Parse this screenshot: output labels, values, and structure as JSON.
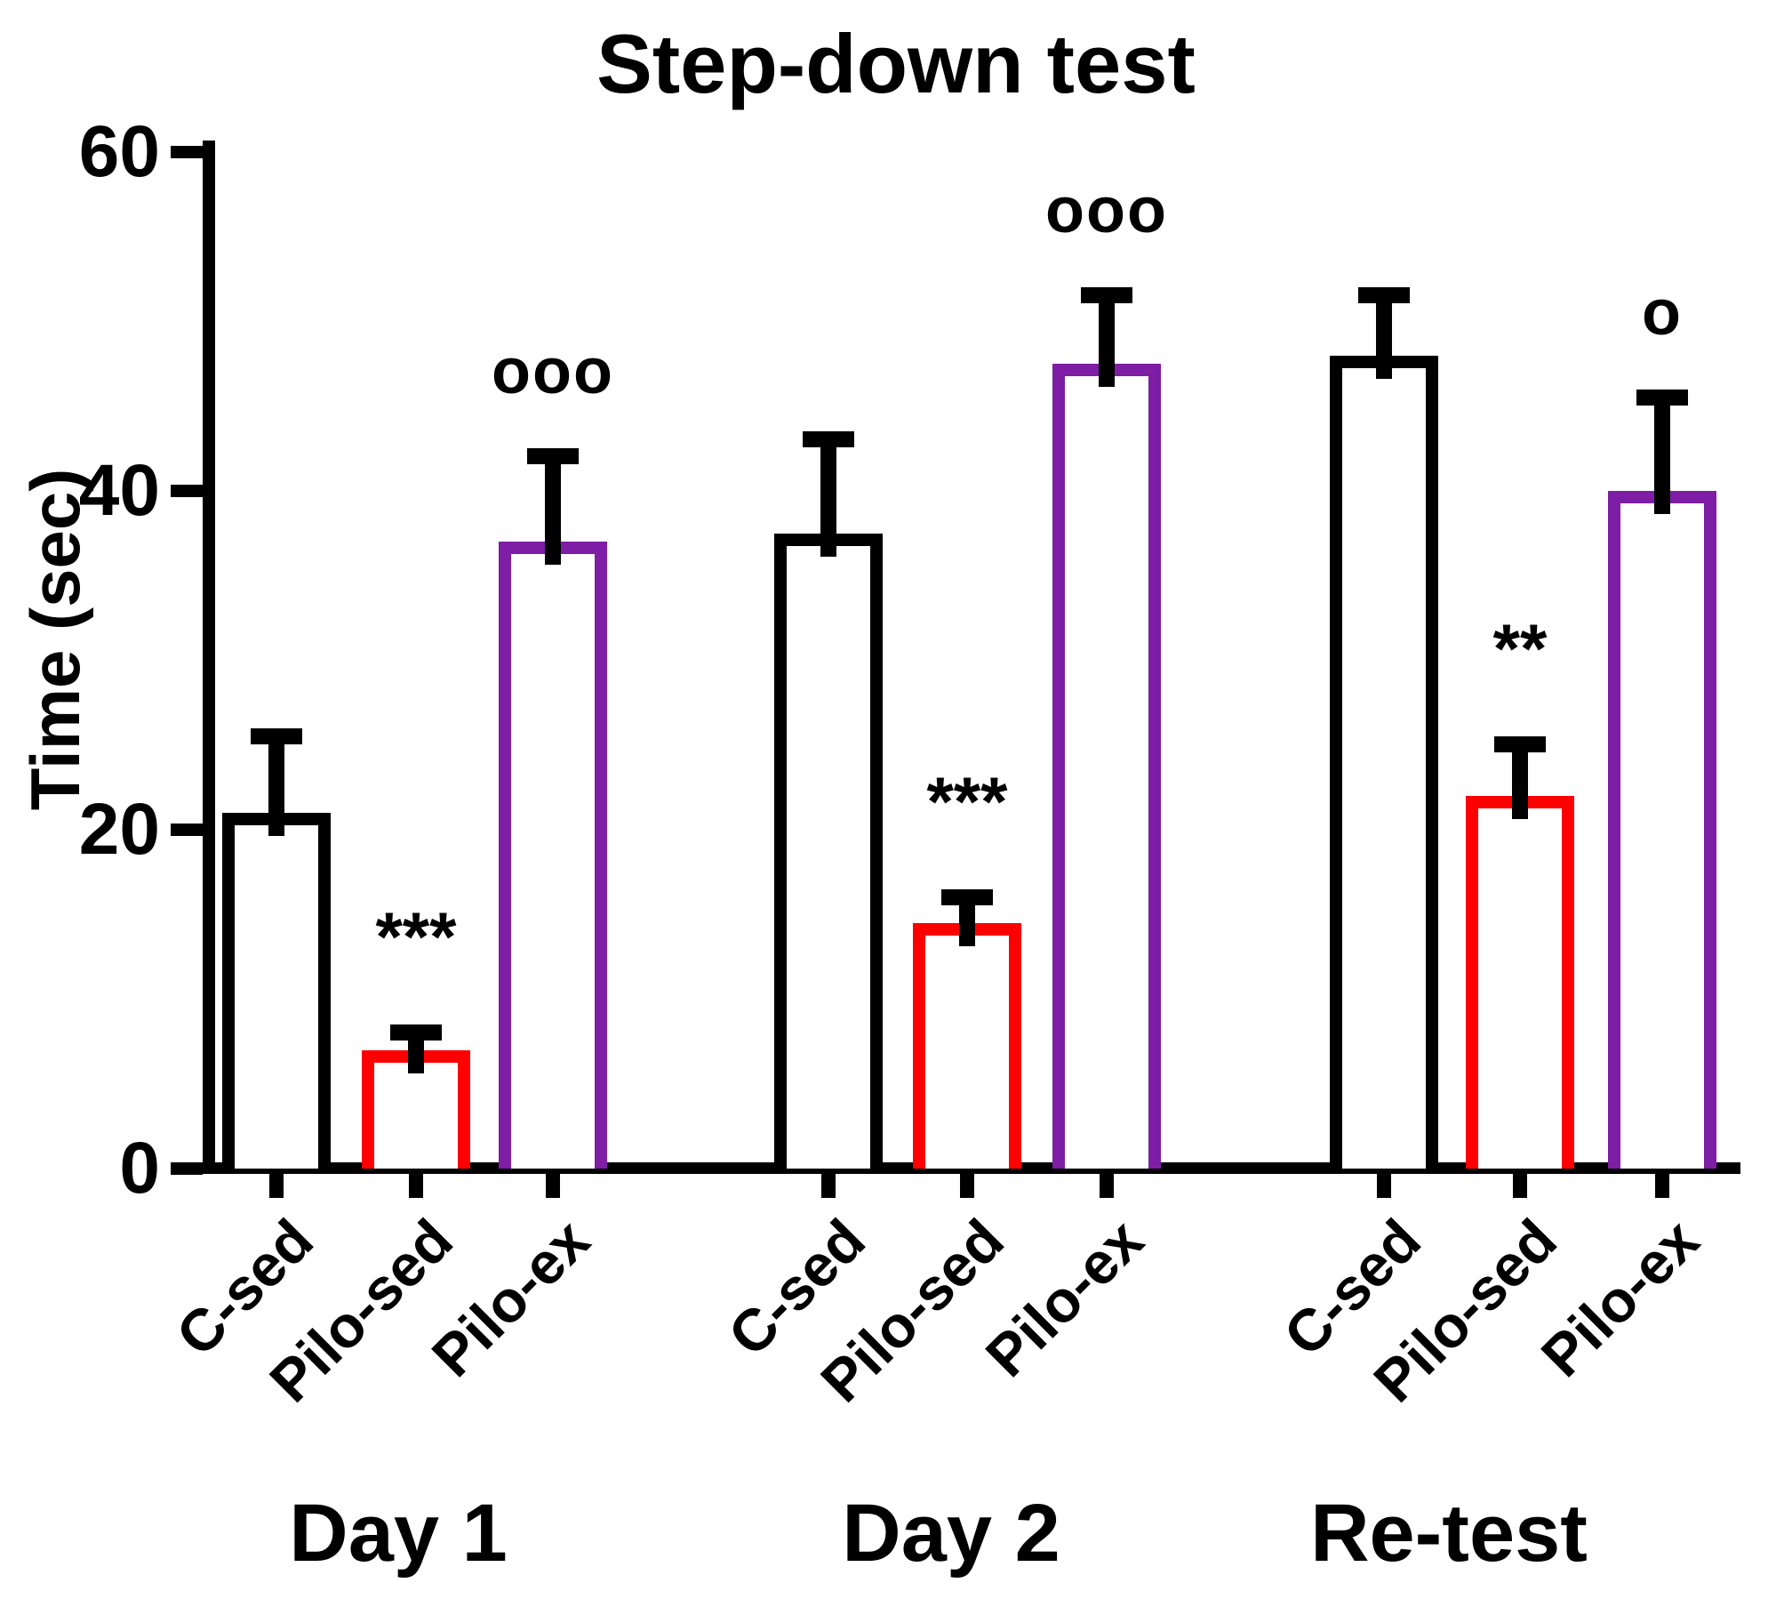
{
  "chart_data": {
    "type": "bar",
    "title": "Step-down test",
    "ylabel": "Time (sec)",
    "xlabel": "",
    "ylim": [
      0,
      60
    ],
    "yticks": [
      "0",
      "20",
      "40",
      "60"
    ],
    "ytick_values": [
      0,
      20,
      40,
      60
    ],
    "grid": false,
    "legend": "none",
    "bar_fill": "#ffffff",
    "error_bar_color": "#000000",
    "groups": [
      "Day 1",
      "Day 2",
      "Re-test"
    ],
    "categories": [
      "C-sed",
      "Pilo-sed",
      "Pilo-ex"
    ],
    "series": [
      {
        "name": "C-sed",
        "outline_color": "#000000",
        "values": [
          21,
          37.5,
          48
        ],
        "errors": [
          5,
          6,
          4
        ],
        "annotations": [
          "",
          "",
          ""
        ]
      },
      {
        "name": "Pilo-sed",
        "outline_color": "#FF0000",
        "values": [
          7,
          14.5,
          22
        ],
        "errors": [
          1.5,
          2,
          3.5
        ],
        "annotations": [
          "***",
          "***",
          "**"
        ]
      },
      {
        "name": "Pilo-ex",
        "outline_color": "#7D1EA5",
        "values": [
          37,
          47.5,
          40
        ],
        "errors": [
          5.5,
          4.5,
          6
        ],
        "annotations": [
          "ooo",
          "ooo",
          "o"
        ]
      }
    ]
  }
}
